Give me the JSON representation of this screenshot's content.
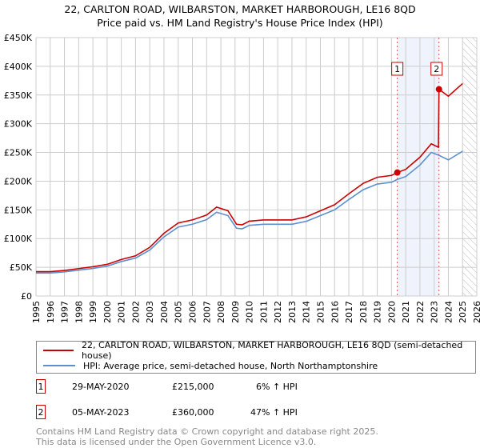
{
  "title": "22, CARLTON ROAD, WILBARSTON, MARKET HARBOROUGH, LE16 8QD",
  "subtitle": "Price paid vs. HM Land Registry's House Price Index (HPI)",
  "chart_data": {
    "type": "line",
    "title": "22, CARLTON ROAD, WILBARSTON, MARKET HARBOROUGH, LE16 8QD",
    "subtitle": "Price paid vs. HM Land Registry's House Price Index (HPI)",
    "xlim": [
      1995,
      2026
    ],
    "ylim": [
      0,
      450000
    ],
    "y_ticks": [
      0,
      50000,
      100000,
      150000,
      200000,
      250000,
      300000,
      350000,
      400000,
      450000
    ],
    "y_tick_labels": [
      "£0",
      "£50K",
      "£100K",
      "£150K",
      "£200K",
      "£250K",
      "£300K",
      "£350K",
      "£400K",
      "£450K"
    ],
    "x_ticks": [
      "1995",
      "1996",
      "1997",
      "1998",
      "1999",
      "2000",
      "2001",
      "2002",
      "2003",
      "2004",
      "2005",
      "2006",
      "2007",
      "2008",
      "2009",
      "2010",
      "2011",
      "2012",
      "2013",
      "2014",
      "2015",
      "2016",
      "2017",
      "2018",
      "2019",
      "2020",
      "2021",
      "2022",
      "2023",
      "2024",
      "2025",
      "2026"
    ],
    "grid": true,
    "shaded_range": [
      2020.41,
      2023.34
    ],
    "forecast_hatch_from": 2025.0,
    "series": [
      {
        "name": "22, CARLTON ROAD, WILBARSTON, MARKET HARBOROUGH, LE16 8QD (semi-detached house)",
        "color": "#cc0000",
        "x": [
          1995,
          1996,
          1997,
          1998,
          1999,
          2000,
          2001,
          2002,
          2003,
          2004,
          2005,
          2006,
          2007,
          2007.7,
          2008.5,
          2009.1,
          2009.5,
          2010,
          2011,
          2012,
          2013,
          2014,
          2015,
          2016,
          2017,
          2018,
          2019,
          2020,
          2020.41,
          2021,
          2022,
          2022.8,
          2023.3,
          2023.34,
          2024,
          2025
        ],
        "y": [
          42400,
          42400,
          44500,
          47700,
          50900,
          55100,
          63600,
          70000,
          84800,
          109200,
          127200,
          132500,
          141000,
          154800,
          148400,
          125000,
          124000,
          130400,
          132500,
          132500,
          132500,
          137800,
          148400,
          159000,
          178000,
          196000,
          206700,
          210000,
          215000,
          220500,
          241700,
          265000,
          259000,
          360000,
          348000,
          370000
        ]
      },
      {
        "name": "HPI: Average price, semi-detached house, North Northamptonshire",
        "color": "#5b8fd0",
        "x": [
          1995,
          1996,
          1997,
          1998,
          1999,
          2000,
          2001,
          2002,
          2003,
          2004,
          2005,
          2006,
          2007,
          2007.7,
          2008.5,
          2009.1,
          2009.5,
          2010,
          2011,
          2012,
          2013,
          2014,
          2015,
          2016,
          2017,
          2018,
          2019,
          2020,
          2020.41,
          2021,
          2022,
          2022.8,
          2023.34,
          2024,
          2025
        ],
        "y": [
          40000,
          40000,
          42000,
          45000,
          48000,
          52000,
          60000,
          66000,
          80000,
          103000,
          120000,
          125000,
          133000,
          146000,
          140000,
          118000,
          117000,
          123000,
          125000,
          125000,
          125000,
          130000,
          140000,
          150000,
          168000,
          185000,
          195000,
          198000,
          203000,
          208000,
          228000,
          250000,
          245000,
          237000,
          252000
        ]
      }
    ],
    "sales": [
      {
        "label": "1",
        "x": 2020.41,
        "y": 215000
      },
      {
        "label": "2",
        "x": 2023.34,
        "y": 360000
      }
    ]
  },
  "legend": {
    "property": "22, CARLTON ROAD, WILBARSTON, MARKET HARBOROUGH, LE16 8QD (semi-detached house)",
    "hpi": "HPI: Average price, semi-detached house, North Northamptonshire"
  },
  "transactions": [
    {
      "num": "1",
      "date": "29-MAY-2020",
      "price": "£215,000",
      "delta": "6% ↑ HPI"
    },
    {
      "num": "2",
      "date": "05-MAY-2023",
      "price": "£360,000",
      "delta": "47% ↑ HPI"
    }
  ],
  "footer": {
    "line1": "Contains HM Land Registry data © Crown copyright and database right 2025.",
    "line2": "This data is licensed under the Open Government Licence v3.0."
  }
}
